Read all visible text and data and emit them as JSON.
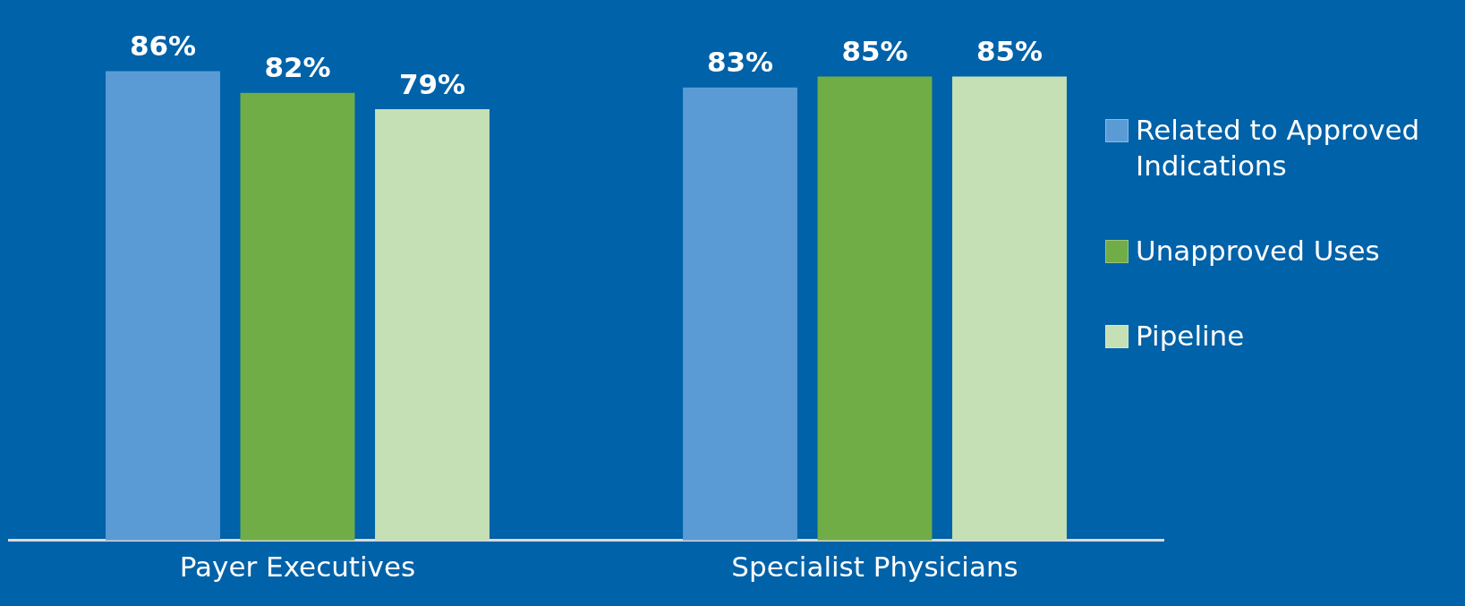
{
  "chart_data": {
    "type": "bar",
    "categories": [
      "Payer Executives",
      "Specialist Physicians"
    ],
    "series": [
      {
        "name": "Related to Approved Indications",
        "color": "#5b9bd5",
        "values": [
          86,
          83
        ],
        "value_labels": [
          "86%",
          "83%"
        ]
      },
      {
        "name": "Unapproved Uses",
        "color": "#70ad47",
        "values": [
          82,
          85
        ],
        "value_labels": [
          "82%",
          "85%"
        ]
      },
      {
        "name": "Pipeline",
        "color": "#c5e0b4",
        "values": [
          79,
          85
        ],
        "value_labels": [
          "79%",
          "85%"
        ]
      }
    ],
    "legend": "right"
  }
}
